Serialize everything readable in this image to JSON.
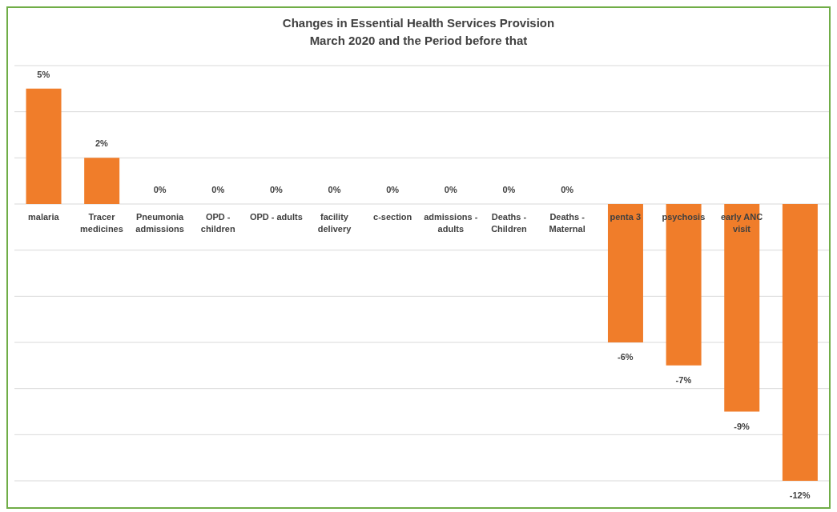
{
  "chart_data": {
    "type": "bar",
    "title": "Changes in Essential Health Services Provision",
    "subtitle": "March 2020 and the Period before that",
    "categories": [
      "malaria",
      "Tracer medicines",
      "Pneumonia admissions",
      "OPD - children",
      "OPD - adults",
      "facility delivery",
      "c-section",
      "admissions - adults",
      "Deaths - Children",
      "Deaths - Maternal",
      "penta 3",
      "psychosis",
      "early ANC visit",
      null
    ],
    "values": [
      5,
      2,
      0,
      0,
      0,
      0,
      0,
      0,
      0,
      0,
      -6,
      -7,
      -9,
      -12
    ],
    "value_labels": [
      "5%",
      "2%",
      "0%",
      "0%",
      "0%",
      "0%",
      "0%",
      "0%",
      "0%",
      "0%",
      "-6%",
      "-7%",
      "-9%",
      "-12%"
    ],
    "color": "#f07d2a",
    "ylim": [
      -12,
      6
    ],
    "yticks": [
      {
        "value": -12,
        "label": null
      },
      {
        "value": -10,
        "label": null
      },
      {
        "value": -8,
        "label": null
      },
      {
        "value": -6,
        "label": null
      },
      {
        "value": -4,
        "label": null
      },
      {
        "value": -2,
        "label": null
      },
      {
        "value": 0,
        "label": null
      },
      {
        "value": 2,
        "label": null
      },
      {
        "value": 4,
        "label": null
      },
      {
        "value": 6,
        "label": null
      }
    ],
    "grid": "y",
    "tick_labels": "x",
    "legend": false
  }
}
